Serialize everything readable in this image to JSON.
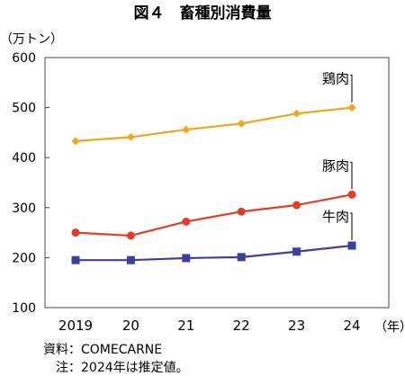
{
  "chart_data": {
    "type": "line",
    "title": "図４　畜種別消費量",
    "ylabel": "（万トン）",
    "xlabel": "（年）",
    "categories": [
      "2019",
      "20",
      "21",
      "22",
      "23",
      "24"
    ],
    "ylim": [
      100,
      600
    ],
    "yticks": [
      "100",
      "200",
      "300",
      "400",
      "500",
      "600"
    ],
    "grid": false,
    "series": [
      {
        "name": "鶏肉",
        "color": "#F0A51E",
        "marker": "diamond",
        "values": [
          433,
          441,
          456,
          468,
          488,
          500
        ]
      },
      {
        "name": "豚肉",
        "color": "#E0402A",
        "marker": "circle",
        "values": [
          250,
          244,
          272,
          292,
          305,
          326
        ]
      },
      {
        "name": "牛肉",
        "color": "#3C3F9C",
        "marker": "square",
        "values": [
          195,
          195,
          199,
          201,
          212,
          224
        ]
      }
    ]
  },
  "notes": {
    "source": "資料：COMECARNE",
    "note": "注：2024年は推定値。"
  }
}
